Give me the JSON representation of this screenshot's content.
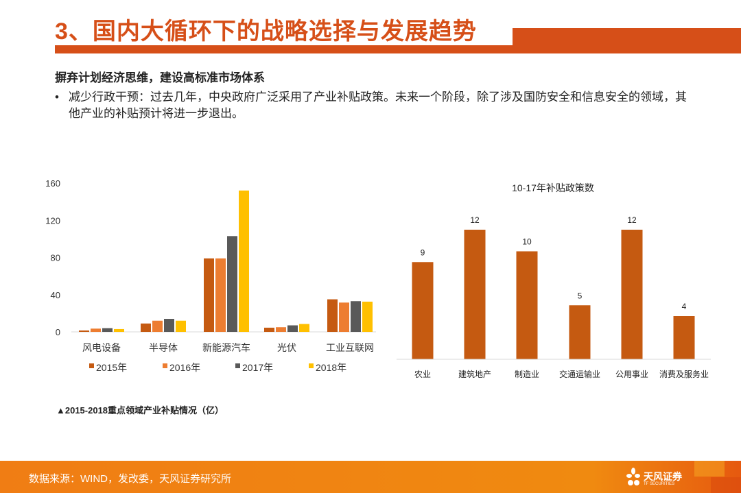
{
  "header": {
    "title": "3、国内大循环下的战略选择与发展趋势"
  },
  "content": {
    "subtitle": "摒弃计划经济思维，建设高标准市场体系",
    "bullet_marker": "•",
    "bullet": "减少行政干预：过去几年，中央政府广泛采用了产业补贴政策。未来一个阶段，除了涉及国防安全和信息安全的领域，其他产业的补贴预计将进一步退出。",
    "caption": "▲2015-2018重点领域产业补贴情况（亿）"
  },
  "footer": {
    "source": "数据来源：WIND，发改委，天风证券研究所",
    "logo_cn": "天风证券",
    "logo_en": "TF SECURITIES"
  },
  "chart_data": [
    {
      "type": "bar",
      "categories": [
        "风电设备",
        "半导体",
        "新能源汽车",
        "光伏",
        "工业互联网"
      ],
      "series": [
        {
          "name": "2015年",
          "color": "#c55a11",
          "values": [
            1.5,
            9,
            79,
            4.5,
            35
          ]
        },
        {
          "name": "2016年",
          "color": "#ed7d31",
          "values": [
            3.5,
            12,
            79,
            5,
            31.5
          ]
        },
        {
          "name": "2017年",
          "color": "#595959",
          "values": [
            4,
            14,
            103,
            7,
            33
          ]
        },
        {
          "name": "2018年",
          "color": "#ffc000",
          "values": [
            3,
            12,
            152,
            8.5,
            32.5
          ]
        }
      ],
      "ylim": [
        0,
        160
      ],
      "yticks": [
        "0",
        "40",
        "80",
        "120",
        "160"
      ],
      "legend": "bottom",
      "grid": false
    },
    {
      "type": "bar",
      "title": "10-17年补贴政策数",
      "categories": [
        "农业",
        "建筑地产",
        "制造业",
        "交通运输业",
        "公用事业",
        "消费及服务业"
      ],
      "values": [
        9,
        12,
        10,
        5,
        12,
        4
      ],
      "data_labels": [
        "9",
        "12",
        "10",
        "5",
        "12",
        "4"
      ],
      "color": "#c55a11",
      "grid": false
    }
  ]
}
